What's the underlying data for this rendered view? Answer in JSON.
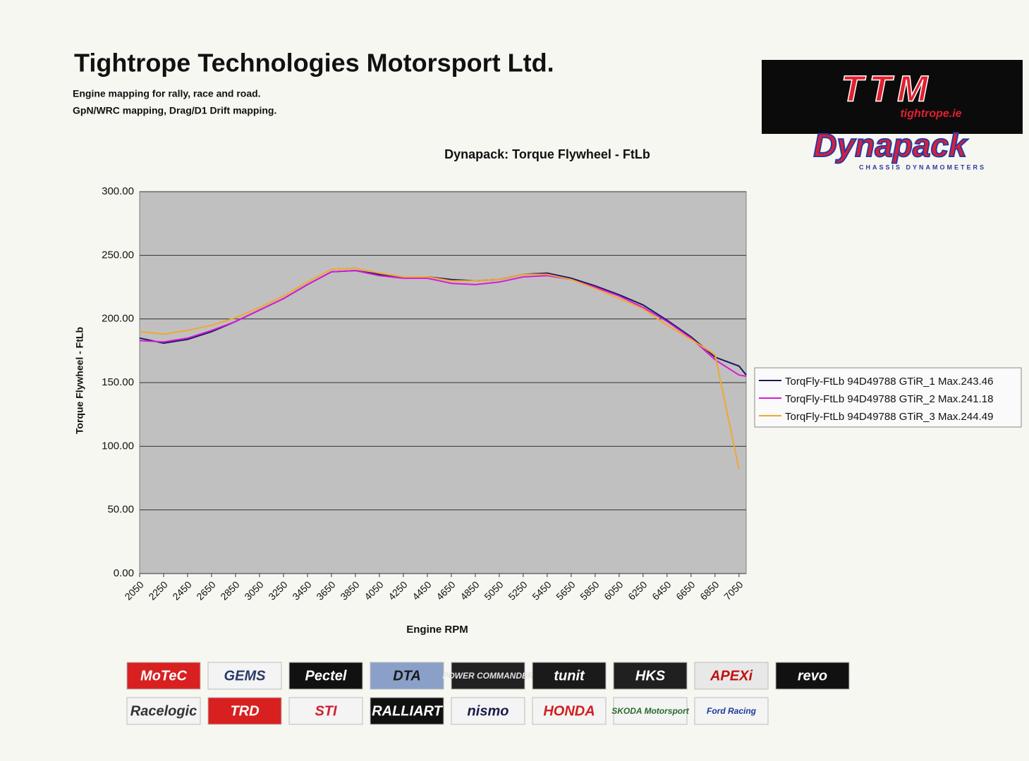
{
  "header": {
    "title": "Tightrope Technologies Motorsport Ltd.",
    "lines": [
      "Engine mapping for rally, race and road.",
      "GpN/WRC mapping, Drag/D1 Drift mapping."
    ]
  },
  "brand": {
    "logo": "TTM",
    "site": "tightrope.ie",
    "dyno": "Dynapack",
    "dyno_sub": "CHASSIS DYNAMOMETERS"
  },
  "chart_data": {
    "type": "line",
    "title": "Dynapack: Torque Flywheel - FtLb",
    "x_label": "Engine RPM",
    "y_label": "Torque Flywheel - FtLb",
    "x": [
      2050,
      2250,
      2450,
      2650,
      2850,
      3050,
      3250,
      3450,
      3650,
      3850,
      4050,
      4250,
      4450,
      4650,
      4850,
      5050,
      5250,
      5450,
      5650,
      5850,
      6050,
      6250,
      6450,
      6650,
      6850,
      7050,
      7110
    ],
    "xlim": [
      2050,
      7110
    ],
    "xticks": [
      2050,
      2250,
      2450,
      2650,
      2850,
      3050,
      3250,
      3450,
      3650,
      3850,
      4050,
      4250,
      4450,
      4650,
      4850,
      5050,
      5250,
      5450,
      5650,
      5850,
      6050,
      6250,
      6450,
      6650,
      6850,
      7050
    ],
    "ylim": [
      0,
      300
    ],
    "yticks": [
      {
        "value": 0,
        "label": "0.00"
      },
      {
        "value": 50,
        "label": "50.00"
      },
      {
        "value": 100,
        "label": "100.00"
      },
      {
        "value": 150,
        "label": "150.00"
      },
      {
        "value": 200,
        "label": "200.00"
      },
      {
        "value": 250,
        "label": "250.00"
      },
      {
        "value": 300,
        "label": "300.00"
      }
    ],
    "grid": true,
    "legend": "right",
    "series": [
      {
        "name": "TorqFly-FtLb 94D49788 GTiR_1 Max.243.46",
        "color": "#1a1a5e",
        "values": [
          185,
          181,
          184,
          190,
          198,
          207,
          216,
          227,
          237,
          238,
          235,
          233,
          233,
          231,
          230,
          231,
          235,
          236,
          232,
          226,
          219,
          211,
          199,
          186,
          170,
          163,
          156
        ]
      },
      {
        "name": "TorqFly-FtLb 94D49788 GTiR_2 Max.241.18",
        "color": "#d81bd8",
        "values": [
          183,
          182,
          185,
          191,
          198,
          207,
          216,
          227,
          237,
          238,
          234,
          232,
          232,
          228,
          227,
          229,
          233,
          234,
          231,
          225,
          218,
          209,
          198,
          185,
          168,
          156,
          155
        ]
      },
      {
        "name": "TorqFly-FtLb 94D49788 GTiR_3 Max.244.49",
        "color": "#f0a830",
        "values": [
          190,
          188,
          191,
          195,
          201,
          209,
          218,
          229,
          239,
          240,
          236,
          233,
          233,
          230,
          230,
          231,
          235,
          235,
          231,
          224,
          216,
          208,
          195,
          184,
          172,
          82,
          null
        ]
      }
    ]
  },
  "logos": [
    {
      "text": "MoTeC",
      "bg": "#d82020",
      "color": "#ffffff"
    },
    {
      "text": "GEMS",
      "bg": "#f4f4f4",
      "color": "#2a3a6a"
    },
    {
      "text": "Pectel",
      "bg": "#111111",
      "color": "#ffffff"
    },
    {
      "text": "DTA",
      "bg": "#8aa0c8",
      "color": "#1a1a1a"
    },
    {
      "text": "POWER COMMANDER",
      "bg": "#222222",
      "color": "#e0e0e0"
    },
    {
      "text": "tunit",
      "bg": "#1a1a1a",
      "color": "#ffffff"
    },
    {
      "text": "HKS",
      "bg": "#202020",
      "color": "#ffffff"
    },
    {
      "text": "APEXi",
      "bg": "#e8e8e8",
      "color": "#c01010"
    },
    {
      "text": "revo",
      "bg": "#111111",
      "color": "#ffffff"
    },
    {
      "text": "Racelogic",
      "bg": "#f4f4f4",
      "color": "#333333"
    },
    {
      "text": "TRD",
      "bg": "#d82020",
      "color": "#ffffff"
    },
    {
      "text": "STI",
      "bg": "#f4f4f4",
      "color": "#d02030"
    },
    {
      "text": "RALLIART",
      "bg": "#111111",
      "color": "#ffffff"
    },
    {
      "text": "nismo",
      "bg": "#f4f4f4",
      "color": "#1a1a4a"
    },
    {
      "text": "HONDA",
      "bg": "#f4f4f4",
      "color": "#d02020"
    },
    {
      "text": "SKODA Motorsport",
      "bg": "#f4f4f4",
      "color": "#2a6a2a"
    },
    {
      "text": "Ford Racing",
      "bg": "#f4f4f4",
      "color": "#1a3a9a"
    }
  ]
}
